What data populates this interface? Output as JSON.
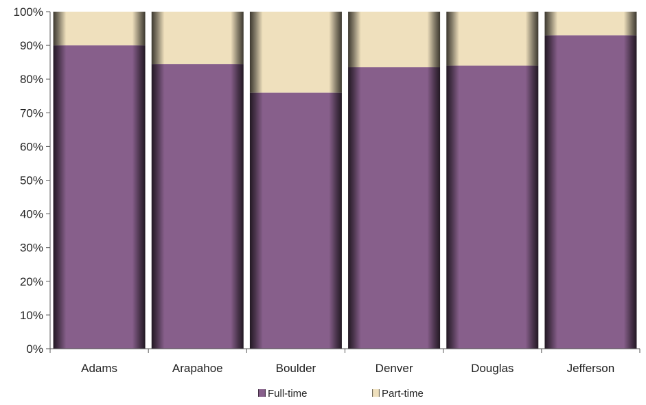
{
  "chart_data": {
    "type": "bar",
    "stacked": "percent",
    "categories": [
      "Adams",
      "Arapahoe",
      "Boulder",
      "Denver",
      "Douglas",
      "Jefferson"
    ],
    "series": [
      {
        "name": "Full-time",
        "values": [
          90,
          84.5,
          76,
          83.5,
          84,
          93
        ],
        "color": "#875f8b"
      },
      {
        "name": "Part-time",
        "values": [
          10,
          15.5,
          24,
          16.5,
          16,
          7
        ],
        "color": "#efe0bd"
      }
    ],
    "yticks": [
      "0%",
      "10%",
      "20%",
      "30%",
      "40%",
      "50%",
      "60%",
      "70%",
      "80%",
      "90%",
      "100%"
    ],
    "ylim": [
      0,
      100
    ],
    "grid": false,
    "legend": "bottom"
  }
}
